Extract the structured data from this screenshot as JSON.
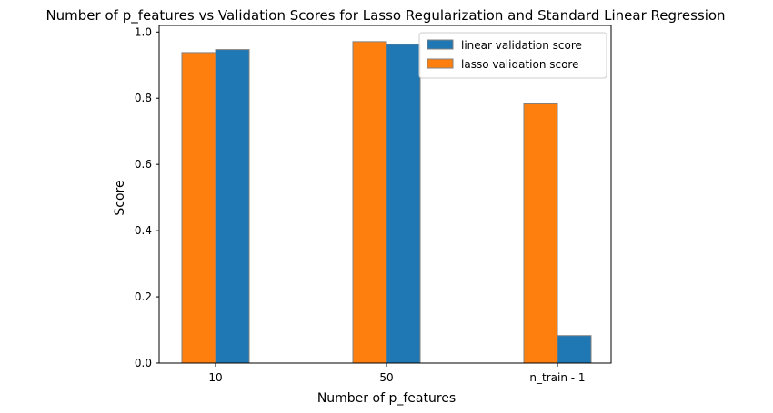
{
  "chart_data": {
    "type": "bar",
    "title": "Number of p_features vs Validation Scores for Lasso Regularization and Standard Linear Regression",
    "xlabel": "Number of p_features",
    "ylabel": "Score",
    "categories": [
      "10",
      "50",
      "n_train - 1"
    ],
    "series": [
      {
        "name": "linear validation score",
        "values": [
          0.947,
          0.963,
          0.083
        ],
        "color": "#1f77b4"
      },
      {
        "name": "lasso validation score",
        "values": [
          0.938,
          0.971,
          0.783
        ],
        "color": "#ff7f0e"
      }
    ],
    "bar_order": [
      "lasso validation score",
      "linear validation score"
    ],
    "ylim": [
      0,
      1.02
    ],
    "yticks": [
      0.0,
      0.2,
      0.4,
      0.6,
      0.8,
      1.0
    ],
    "ytick_labels": [
      "0.0",
      "0.2",
      "0.4",
      "0.6",
      "0.8",
      "1.0"
    ],
    "grid": false,
    "legend_position": "top-right",
    "bar_edge_color": "#808080"
  }
}
